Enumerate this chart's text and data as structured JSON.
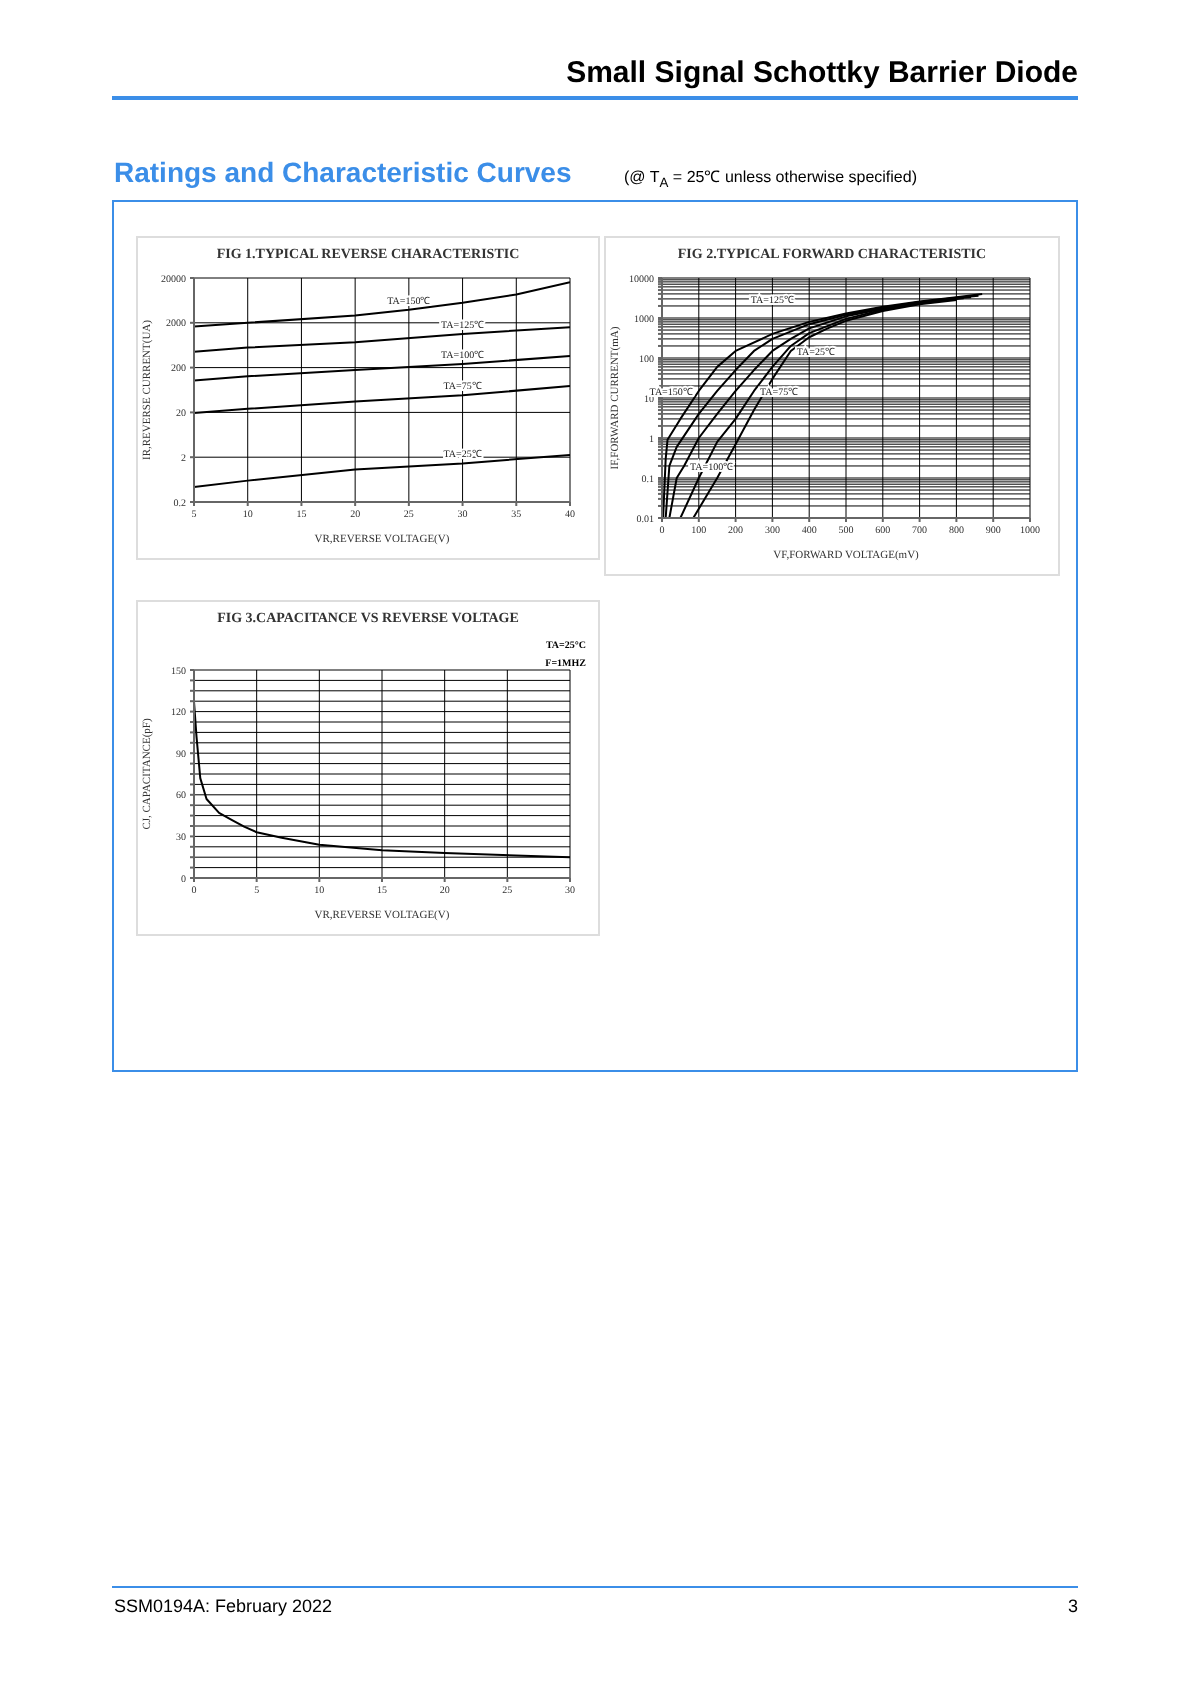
{
  "chart_data": [
    {
      "type": "line",
      "title": "FIG 1.TYPICAL REVERSE CHARACTERISTIC",
      "xlabel": "VR,REVERSE  VOLTAGE(V)",
      "ylabel": "IR,REVERSE  CURRENT(UA)",
      "log": "y",
      "grid": true,
      "marker": "none",
      "line_style": "solid",
      "xlim": [
        5,
        40
      ],
      "xticks": [
        5,
        10,
        15,
        20,
        25,
        30,
        35,
        40
      ],
      "ylim": [
        0.2,
        20000
      ],
      "yticks": [
        0.2,
        2,
        20,
        200,
        2000,
        20000
      ],
      "annotations": [
        "Small Signal Schottky Barrier Diode",
        "Ratings and Characteristic Curves",
        "(@ T$_{A}$ = 25℃ unless otherwise specified)",
        "SSM0194A: February 2022",
        "3"
      ],
      "series": [
        {
          "name": "TA=150℃",
          "color": "#000000",
          "x": [
            5,
            10,
            20,
            25,
            30,
            35,
            40
          ],
          "values": [
            1660,
            2000,
            2900,
            3900,
            5600,
            8600,
            16000
          ]
        },
        {
          "name": "TA=125℃",
          "color": "#000000",
          "x": [
            5,
            10,
            20,
            30,
            40
          ],
          "values": [
            450,
            560,
            740,
            1130,
            1600
          ]
        },
        {
          "name": "TA=100℃",
          "color": "#000000",
          "x": [
            5,
            10,
            20,
            30,
            40
          ],
          "values": [
            103,
            128,
            176,
            240,
            364
          ]
        },
        {
          "name": "TA=75℃",
          "color": "#000000",
          "x": [
            5,
            10,
            20,
            30,
            40
          ],
          "values": [
            19.5,
            24,
            35,
            48,
            78
          ]
        },
        {
          "name": "TA=25℃",
          "color": "#000000",
          "x": [
            5,
            10,
            20,
            30,
            40
          ],
          "values": [
            0.43,
            0.6,
            1.06,
            1.45,
            2.25
          ]
        }
      ]
    },
    {
      "type": "line",
      "title": "FIG 2.TYPICAL FORWARD CHARACTERISTIC",
      "xlabel": "VF,FORWARD  VOLTAGE(mV)",
      "ylabel": "IF,FORWARD  CURRENT(mA)",
      "log": "y",
      "grid": true,
      "marker": "none",
      "line_style": "solid",
      "xlim": [
        0,
        1000
      ],
      "xticks": [
        0,
        100,
        200,
        300,
        400,
        500,
        600,
        700,
        800,
        900,
        1000
      ],
      "ylim": [
        0.01,
        10000
      ],
      "yticks": [
        0.01,
        {
          "value": 0.02,
          "label": null
        },
        {
          "value": 0.03,
          "label": null
        },
        {
          "value": 0.04,
          "label": null
        },
        {
          "value": 0.05,
          "label": null
        },
        {
          "value": 0.06,
          "label": null
        },
        {
          "value": 0.07,
          "label": null
        },
        {
          "value": 0.08,
          "label": null
        },
        {
          "value": 0.09,
          "label": null
        },
        0.1,
        {
          "value": 0.2,
          "label": null
        },
        {
          "value": 0.3,
          "label": null
        },
        {
          "value": 0.4,
          "label": null
        },
        {
          "value": 0.5,
          "label": null
        },
        {
          "value": 0.6,
          "label": null
        },
        {
          "value": 0.7,
          "label": null
        },
        {
          "value": 0.8,
          "label": null
        },
        {
          "value": 0.9,
          "label": null
        },
        1,
        {
          "value": 2,
          "label": null
        },
        {
          "value": 3,
          "label": null
        },
        {
          "value": 4,
          "label": null
        },
        {
          "value": 5,
          "label": null
        },
        {
          "value": 6,
          "label": null
        },
        {
          "value": 7,
          "label": null
        },
        {
          "value": 8,
          "label": null
        },
        {
          "value": 9,
          "label": null
        },
        10,
        {
          "value": 20,
          "label": null
        },
        {
          "value": 30,
          "label": null
        },
        {
          "value": 40,
          "label": null
        },
        {
          "value": 50,
          "label": null
        },
        {
          "value": 60,
          "label": null
        },
        {
          "value": 70,
          "label": null
        },
        {
          "value": 80,
          "label": null
        },
        {
          "value": 90,
          "label": null
        },
        100,
        {
          "value": 200,
          "label": null
        },
        {
          "value": 300,
          "label": null
        },
        {
          "value": 400,
          "label": null
        },
        {
          "value": 500,
          "label": null
        },
        {
          "value": 600,
          "label": null
        },
        {
          "value": 700,
          "label": null
        },
        {
          "value": 800,
          "label": null
        },
        {
          "value": 900,
          "label": null
        },
        1000,
        {
          "value": 2000,
          "label": null
        },
        {
          "value": 3000,
          "label": null
        },
        {
          "value": 4000,
          "label": null
        },
        {
          "value": 5000,
          "label": null
        },
        {
          "value": 6000,
          "label": null
        },
        {
          "value": 7000,
          "label": null
        },
        {
          "value": 8000,
          "label": null
        },
        {
          "value": 9000,
          "label": null
        },
        10000
      ],
      "series": [
        {
          "name": "TA=150℃",
          "color": "#000000",
          "x": [
            3,
            10,
            15,
            50,
            100,
            150,
            200,
            300,
            400,
            500,
            600,
            700,
            800,
            870
          ],
          "values": [
            0.01,
            0.3,
            0.9,
            3,
            15,
            60,
            150,
            400,
            800,
            1300,
            1900,
            2600,
            3300,
            4000
          ]
        },
        {
          "name": "TA=125℃",
          "color": "#000000",
          "x": [
            10,
            20,
            40,
            100,
            150,
            200,
            250,
            300,
            400,
            500,
            600,
            700,
            800,
            860
          ],
          "values": [
            0.01,
            0.2,
            0.6,
            4,
            15,
            50,
            150,
            300,
            700,
            1200,
            1800,
            2500,
            3200,
            3600
          ]
        },
        {
          "name": "TA=100℃",
          "color": "#000000",
          "x": [
            20,
            40,
            60,
            100,
            150,
            200,
            250,
            300,
            350,
            400,
            500,
            600,
            700,
            800,
            840
          ],
          "values": [
            0.01,
            0.1,
            0.2,
            1,
            4,
            15,
            50,
            150,
            300,
            550,
            1100,
            1700,
            2400,
            3100,
            3300
          ]
        },
        {
          "name": "TA=75℃",
          "color": "#000000",
          "x": [
            50,
            100,
            150,
            200,
            250,
            300,
            350,
            400,
            500,
            600,
            700,
            800,
            820
          ],
          "values": [
            0.01,
            0.1,
            0.8,
            3,
            15,
            60,
            200,
            420,
            950,
            1600,
            2300,
            3000,
            3100
          ]
        },
        {
          "name": "TA=25℃",
          "color": "#000000",
          "x": [
            85,
            150,
            200,
            250,
            300,
            350,
            400,
            450,
            500,
            600,
            700,
            800
          ],
          "values": [
            0.01,
            0.1,
            0.7,
            5,
            30,
            150,
            330,
            550,
            850,
            1500,
            2200,
            2800
          ]
        }
      ]
    },
    {
      "type": "line",
      "title": "FIG 3.CAPACITANCE VS REVERSE VOLTAGE",
      "xlabel": "VR,REVERSE  VOLTAGE(V)",
      "ylabel": "CJ,  CAPACITANCE(pF)",
      "grid": true,
      "marker": "none",
      "line_style": "solid",
      "xlim": [
        0,
        30
      ],
      "xticks": [
        0,
        5,
        10,
        15,
        20,
        25,
        30
      ],
      "ylim": [
        0,
        150
      ],
      "yticks": [
        0,
        {
          "value": 7.5,
          "label": null
        },
        {
          "value": 15,
          "label": null
        },
        {
          "value": 22.5,
          "label": null
        },
        30,
        {
          "value": 37.5,
          "label": null
        },
        {
          "value": 45,
          "label": null
        },
        {
          "value": 52.5,
          "label": null
        },
        60,
        {
          "value": 67.5,
          "label": null
        },
        {
          "value": 75,
          "label": null
        },
        {
          "value": 82.5,
          "label": null
        },
        90,
        {
          "value": 97.5,
          "label": null
        },
        {
          "value": 105,
          "label": null
        },
        {
          "value": 112.5,
          "label": null
        },
        120,
        {
          "value": 127.5,
          "label": null
        },
        {
          "value": 135,
          "label": null
        },
        {
          "value": 142.5,
          "label": null
        },
        150
      ],
      "annotations": [
        "TA=25°C",
        "F=1MHZ"
      ],
      "series": [
        {
          "color": "#000000",
          "x": [
            0,
            0.2,
            0.5,
            1,
            2,
            3,
            4,
            5,
            7,
            10,
            15,
            20,
            30
          ],
          "values": [
            127,
            102,
            72,
            57,
            47,
            42,
            37,
            33,
            29,
            24,
            20,
            18,
            15
          ]
        }
      ]
    }
  ]
}
